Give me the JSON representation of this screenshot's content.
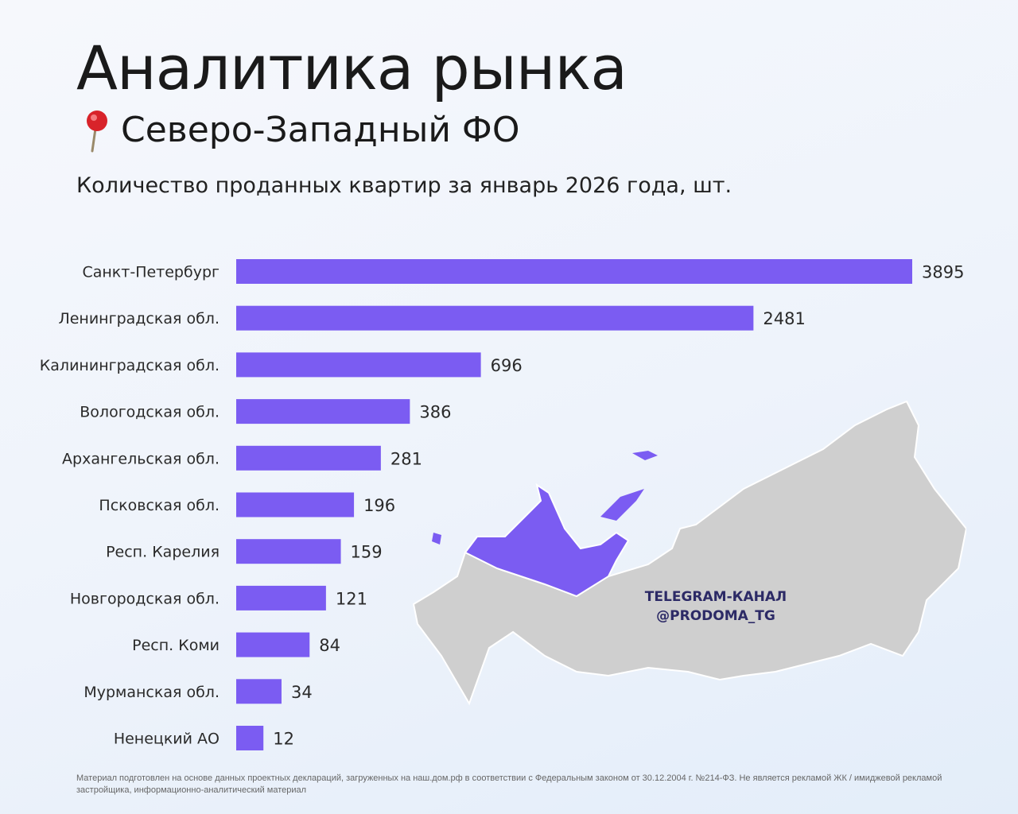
{
  "header": {
    "title": "Аналитика рынка",
    "region": "Северо-Западный ФО",
    "subtitle": "Количество проданных квартир за январь 2026 года, шт."
  },
  "watermark": {
    "line1": "TELEGRAM-КАНАЛ",
    "line2": "@PRODOMA_TG"
  },
  "footnote": "Материал подготовлен на основе данных проектных деклараций, загруженных на наш.дом.рф в соответствии с Федеральным законом от 30.12.2004 г. №214-ФЗ. Не является рекламой ЖК / имиджевой рекламой застройщика, информационно-аналитический материал",
  "colors": {
    "bar": "#7b5cf2",
    "map_highlight": "#7b5cf2",
    "map_base": "#cfcfcf"
  },
  "icons": {
    "region_marker": "map-pin-icon"
  },
  "chart_data": {
    "type": "bar",
    "orientation": "horizontal",
    "title": "Количество проданных квартир за январь 2026 года, шт.",
    "categories": [
      "Санкт-Петербург",
      "Ленинградская обл.",
      "Калининградская обл.",
      "Вологодская обл.",
      "Архангельская обл.",
      "Псковская обл.",
      "Респ. Карелия",
      "Новгородская обл.",
      "Респ. Коми",
      "Мурманская обл.",
      "Ненецкий АО"
    ],
    "values": [
      3895,
      2481,
      696,
      386,
      281,
      196,
      159,
      121,
      84,
      34,
      12
    ],
    "axis_scale": "non-linear",
    "grid": false,
    "legend": "none"
  }
}
